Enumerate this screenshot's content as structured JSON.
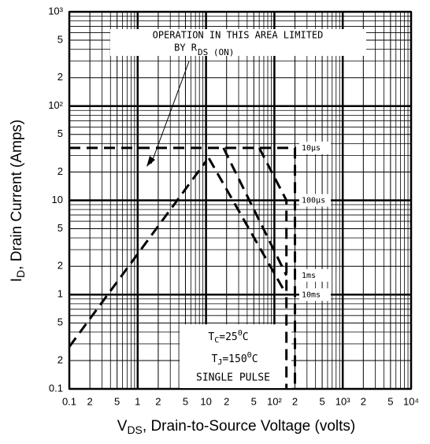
{
  "chart_data": {
    "type": "line",
    "xscale": "log",
    "yscale": "log",
    "grid": true,
    "xlim": [
      0.1,
      10000
    ],
    "ylim": [
      0.1,
      1000
    ],
    "xticks": [
      {
        "value": 0.1,
        "label": "0.1"
      },
      {
        "value": 0.2,
        "label": "2"
      },
      {
        "value": 0.5,
        "label": "5"
      },
      1,
      {
        "value": 2,
        "label": "2"
      },
      {
        "value": 5,
        "label": "5"
      },
      10,
      {
        "value": 20,
        "label": "2"
      },
      {
        "value": 50,
        "label": "5"
      },
      {
        "value": 100,
        "label": "10²"
      },
      {
        "value": 200,
        "label": "2"
      },
      {
        "value": 500,
        "label": "5"
      },
      {
        "value": 1000,
        "label": "10³"
      },
      {
        "value": 2000,
        "label": "2"
      },
      {
        "value": 5000,
        "label": "5"
      },
      {
        "value": 10000,
        "label": "10⁴"
      }
    ],
    "yticks": [
      {
        "value": 0.1,
        "label": "0.1"
      },
      {
        "value": 0.2,
        "label": "2"
      },
      {
        "value": 0.5,
        "label": "5"
      },
      1,
      {
        "value": 2,
        "label": "2"
      },
      {
        "value": 5,
        "label": "5"
      },
      10,
      {
        "value": 20,
        "label": "2"
      },
      {
        "value": 50,
        "label": "5"
      },
      {
        "value": 100,
        "label": "10²"
      },
      {
        "value": 200,
        "label": "2"
      },
      {
        "value": 500,
        "label": "5"
      },
      {
        "value": 1000,
        "label": "10³"
      }
    ],
    "xlabel": {
      "main": "V",
      "sub": "DS",
      "rest": ", Drain-to-Source Voltage (volts)"
    },
    "ylabel": {
      "main": "I",
      "sub": "D",
      "rest": ", Drain Current (Amps)"
    },
    "color": "#000000",
    "series": [
      {
        "name": "10µs",
        "x": [
          0.1,
          200,
          200
        ],
        "values": [
          36,
          36,
          0.1
        ]
      },
      {
        "name": "100µs",
        "x": [
          60,
          150,
          150
        ],
        "values": [
          36,
          10,
          0.1
        ]
      },
      {
        "name": "1ms",
        "x": [
          18,
          150
        ],
        "values": [
          36,
          1.6
        ]
      },
      {
        "name": "10ms",
        "x": [
          11,
          150
        ],
        "values": [
          28,
          1
        ]
      }
    ],
    "limit_line": {
      "x": [
        0.1,
        10
      ],
      "values": [
        0.28,
        26
      ]
    },
    "area_note": {
      "line1": "OPERATION IN THIS AREA LIMITED",
      "by": "BY R",
      "sub": "DS (ON)"
    },
    "conditions": {
      "tc": {
        "main": "T",
        "sub": "C",
        "rest": "=25",
        "sup": "0",
        "unit": "C"
      },
      "tj": {
        "main": "T",
        "sub": "J",
        "rest": "=150",
        "sup": "0",
        "unit": "C"
      },
      "pulse": "SINGLE PULSE"
    }
  }
}
